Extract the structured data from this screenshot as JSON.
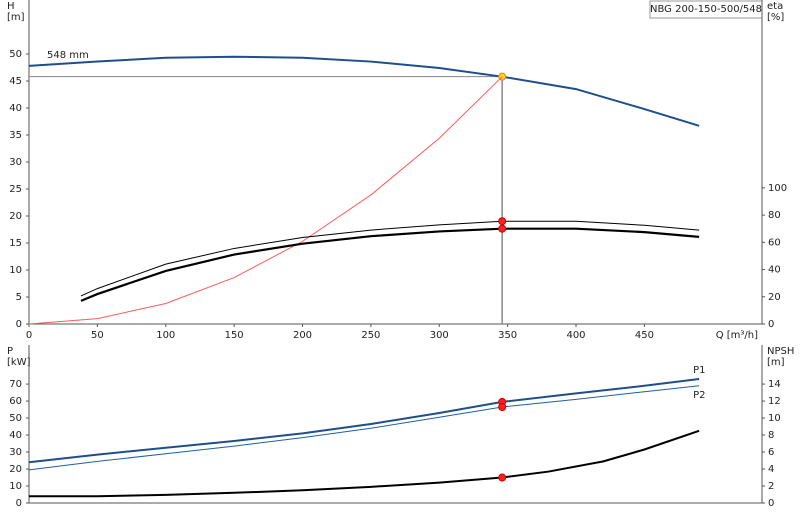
{
  "chart_data": [
    {
      "type": "line",
      "title": "NBG 200-150-500/548",
      "ylabel": [
        "H",
        "[m]"
      ],
      "y2label": [
        "eta",
        "[%]"
      ],
      "xlabel": "Q [m³/h]",
      "annotation": "548 mm",
      "xlim": [
        0,
        536
      ],
      "xticks": [
        0,
        50,
        100,
        150,
        200,
        250,
        300,
        350,
        400,
        450
      ],
      "ylim": [
        0,
        60
      ],
      "yticks": [
        0,
        5,
        10,
        15,
        20,
        25,
        30,
        35,
        40,
        45,
        50
      ],
      "y2lim": [
        0,
        238
      ],
      "y2ticks": [
        0,
        20,
        40,
        60,
        80,
        100
      ],
      "grid": false,
      "operating_point": {
        "Q": 346,
        "H": 45.8
      },
      "series": [
        {
          "color": "#1f4e8c",
          "width": 2,
          "marker_color": "#ffd21f",
          "x": [
            0,
            50,
            100,
            150,
            200,
            250,
            300,
            346,
            400,
            450,
            490
          ],
          "values": [
            47.8,
            48.6,
            49.3,
            49.5,
            49.3,
            48.6,
            47.4,
            45.8,
            43.5,
            39.8,
            36.7
          ]
        },
        {
          "color": "#ff5a5a",
          "width": 1,
          "x": [
            0,
            50,
            100,
            150,
            200,
            250,
            300,
            346
          ],
          "values": [
            0,
            1,
            3.8,
            8.6,
            15.3,
            23.9,
            34.4,
            45.8
          ]
        },
        {
          "color": "#000000",
          "width": 1,
          "axis": "y2",
          "marker_color": "#ff2020",
          "x": [
            38,
            50,
            100,
            150,
            200,
            250,
            300,
            346,
            400,
            450,
            490
          ],
          "values": [
            20.6,
            26,
            44,
            55.5,
            63.5,
            69,
            72.8,
            75.5,
            75.5,
            72.5,
            69
          ]
        },
        {
          "color": "#000000",
          "width": 2.2,
          "axis": "y2",
          "marker_color": "#ff2020",
          "x": [
            38,
            50,
            100,
            150,
            200,
            250,
            300,
            346,
            400,
            450,
            490
          ],
          "values": [
            17,
            22,
            39,
            51,
            59,
            64.5,
            68,
            70,
            70,
            67.5,
            64
          ]
        }
      ]
    },
    {
      "type": "line",
      "ylabel": [
        "P",
        "[kW]"
      ],
      "y2label": [
        "NPSH",
        "[m]"
      ],
      "xlim": [
        0,
        536
      ],
      "ylim": [
        0,
        93
      ],
      "yticks": [
        0,
        10,
        20,
        30,
        40,
        50,
        60,
        70
      ],
      "y2lim": [
        0,
        18.6
      ],
      "y2ticks": [
        0,
        2,
        4,
        6,
        8,
        10,
        12,
        14
      ],
      "series": [
        {
          "name": "P1",
          "color": "#1f4e8c",
          "width": 2,
          "marker_color": "#ff2020",
          "x": [
            0,
            50,
            100,
            150,
            200,
            250,
            300,
            346,
            400,
            450,
            490
          ],
          "values": [
            24,
            28.5,
            32.5,
            36.5,
            41,
            46.5,
            53,
            59.5,
            64.5,
            69,
            73
          ]
        },
        {
          "name": "P2",
          "color": "#1f5fa0",
          "width": 1,
          "marker_color": "#ff2020",
          "x": [
            0,
            50,
            100,
            150,
            200,
            250,
            300,
            346,
            400,
            450,
            490
          ],
          "values": [
            19.5,
            24.5,
            29,
            33.5,
            38.5,
            44,
            50.5,
            56.5,
            61,
            65.5,
            69
          ]
        },
        {
          "color": "#000000",
          "width": 2,
          "axis": "y2",
          "marker_color": "#ff2020",
          "x": [
            0,
            50,
            100,
            150,
            200,
            250,
            300,
            346,
            380,
            420,
            450,
            490
          ],
          "values": [
            0.8,
            0.8,
            0.95,
            1.2,
            1.5,
            1.9,
            2.4,
            3.0,
            3.7,
            4.9,
            6.3,
            8.5
          ]
        }
      ]
    }
  ]
}
